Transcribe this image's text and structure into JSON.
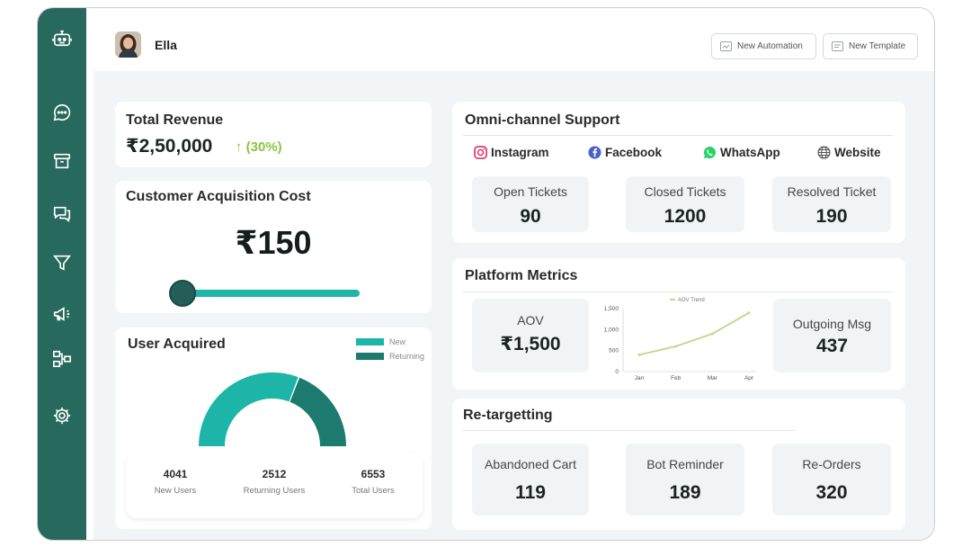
{
  "user": {
    "name": "Ella"
  },
  "topbar": {
    "new_automation": "New Automation",
    "new_template": "New Template"
  },
  "sidebar": {
    "icons": [
      "bot-icon",
      "chat-icon",
      "archive-icon",
      "messages-icon",
      "funnel-icon",
      "megaphone-icon",
      "flow-icon",
      "gear-icon"
    ]
  },
  "revenue": {
    "title": "Total Revenue",
    "value": "₹2,50,000",
    "change": "↑ (30%)",
    "change_color": "#8cc63f"
  },
  "cac": {
    "title": "Customer Acquisition Cost",
    "value": "₹150",
    "slider_level": 0.0
  },
  "users": {
    "title": "User Acquired",
    "legend": [
      {
        "label": "New",
        "color": "#1cb5a8"
      },
      {
        "label": "Returning",
        "color": "#1c7a6e"
      }
    ],
    "gauge": {
      "new": 4041,
      "returning": 2512
    },
    "stats": [
      {
        "value": "4041",
        "label": "New Users"
      },
      {
        "value": "2512",
        "label": "Returning Users"
      },
      {
        "value": "6553",
        "label": "Total Users"
      }
    ]
  },
  "omni": {
    "title": "Omni-channel Support",
    "channels": [
      {
        "label": "Instagram",
        "icon": "instagram-icon"
      },
      {
        "label": "Facebook",
        "icon": "facebook-icon"
      },
      {
        "label": "WhatsApp",
        "icon": "whatsapp-icon"
      },
      {
        "label": "Website",
        "icon": "globe-icon"
      }
    ],
    "metrics": [
      {
        "label": "Open Tickets",
        "value": "90"
      },
      {
        "label": "Closed Tickets",
        "value": "1200"
      },
      {
        "label": "Resolved Ticket",
        "value": "190"
      }
    ]
  },
  "platform": {
    "title": "Platform Metrics",
    "aov": {
      "label": "AOV",
      "value": "₹1,500"
    },
    "outgoing": {
      "label": "Outgoing Msg",
      "value": "437"
    }
  },
  "retargeting": {
    "title": "Re-targetting",
    "metrics": [
      {
        "label": "Abandoned Cart",
        "value": "119"
      },
      {
        "label": "Bot Reminder",
        "value": "189"
      },
      {
        "label": "Re-Orders",
        "value": "320"
      }
    ]
  },
  "chart_data": {
    "type": "line",
    "legend": "AOV Trend",
    "legend_placement": "top",
    "categories": [
      "Jan",
      "Feb",
      "Mar",
      "Apr"
    ],
    "series": [
      {
        "name": "AOV Trend",
        "values": [
          400,
          600,
          900,
          1400
        ],
        "color": "#b9d98b"
      }
    ],
    "yticks": [
      "0",
      "500",
      "1,000",
      "1,500"
    ],
    "ylim": [
      0,
      1500
    ],
    "grid": false
  }
}
